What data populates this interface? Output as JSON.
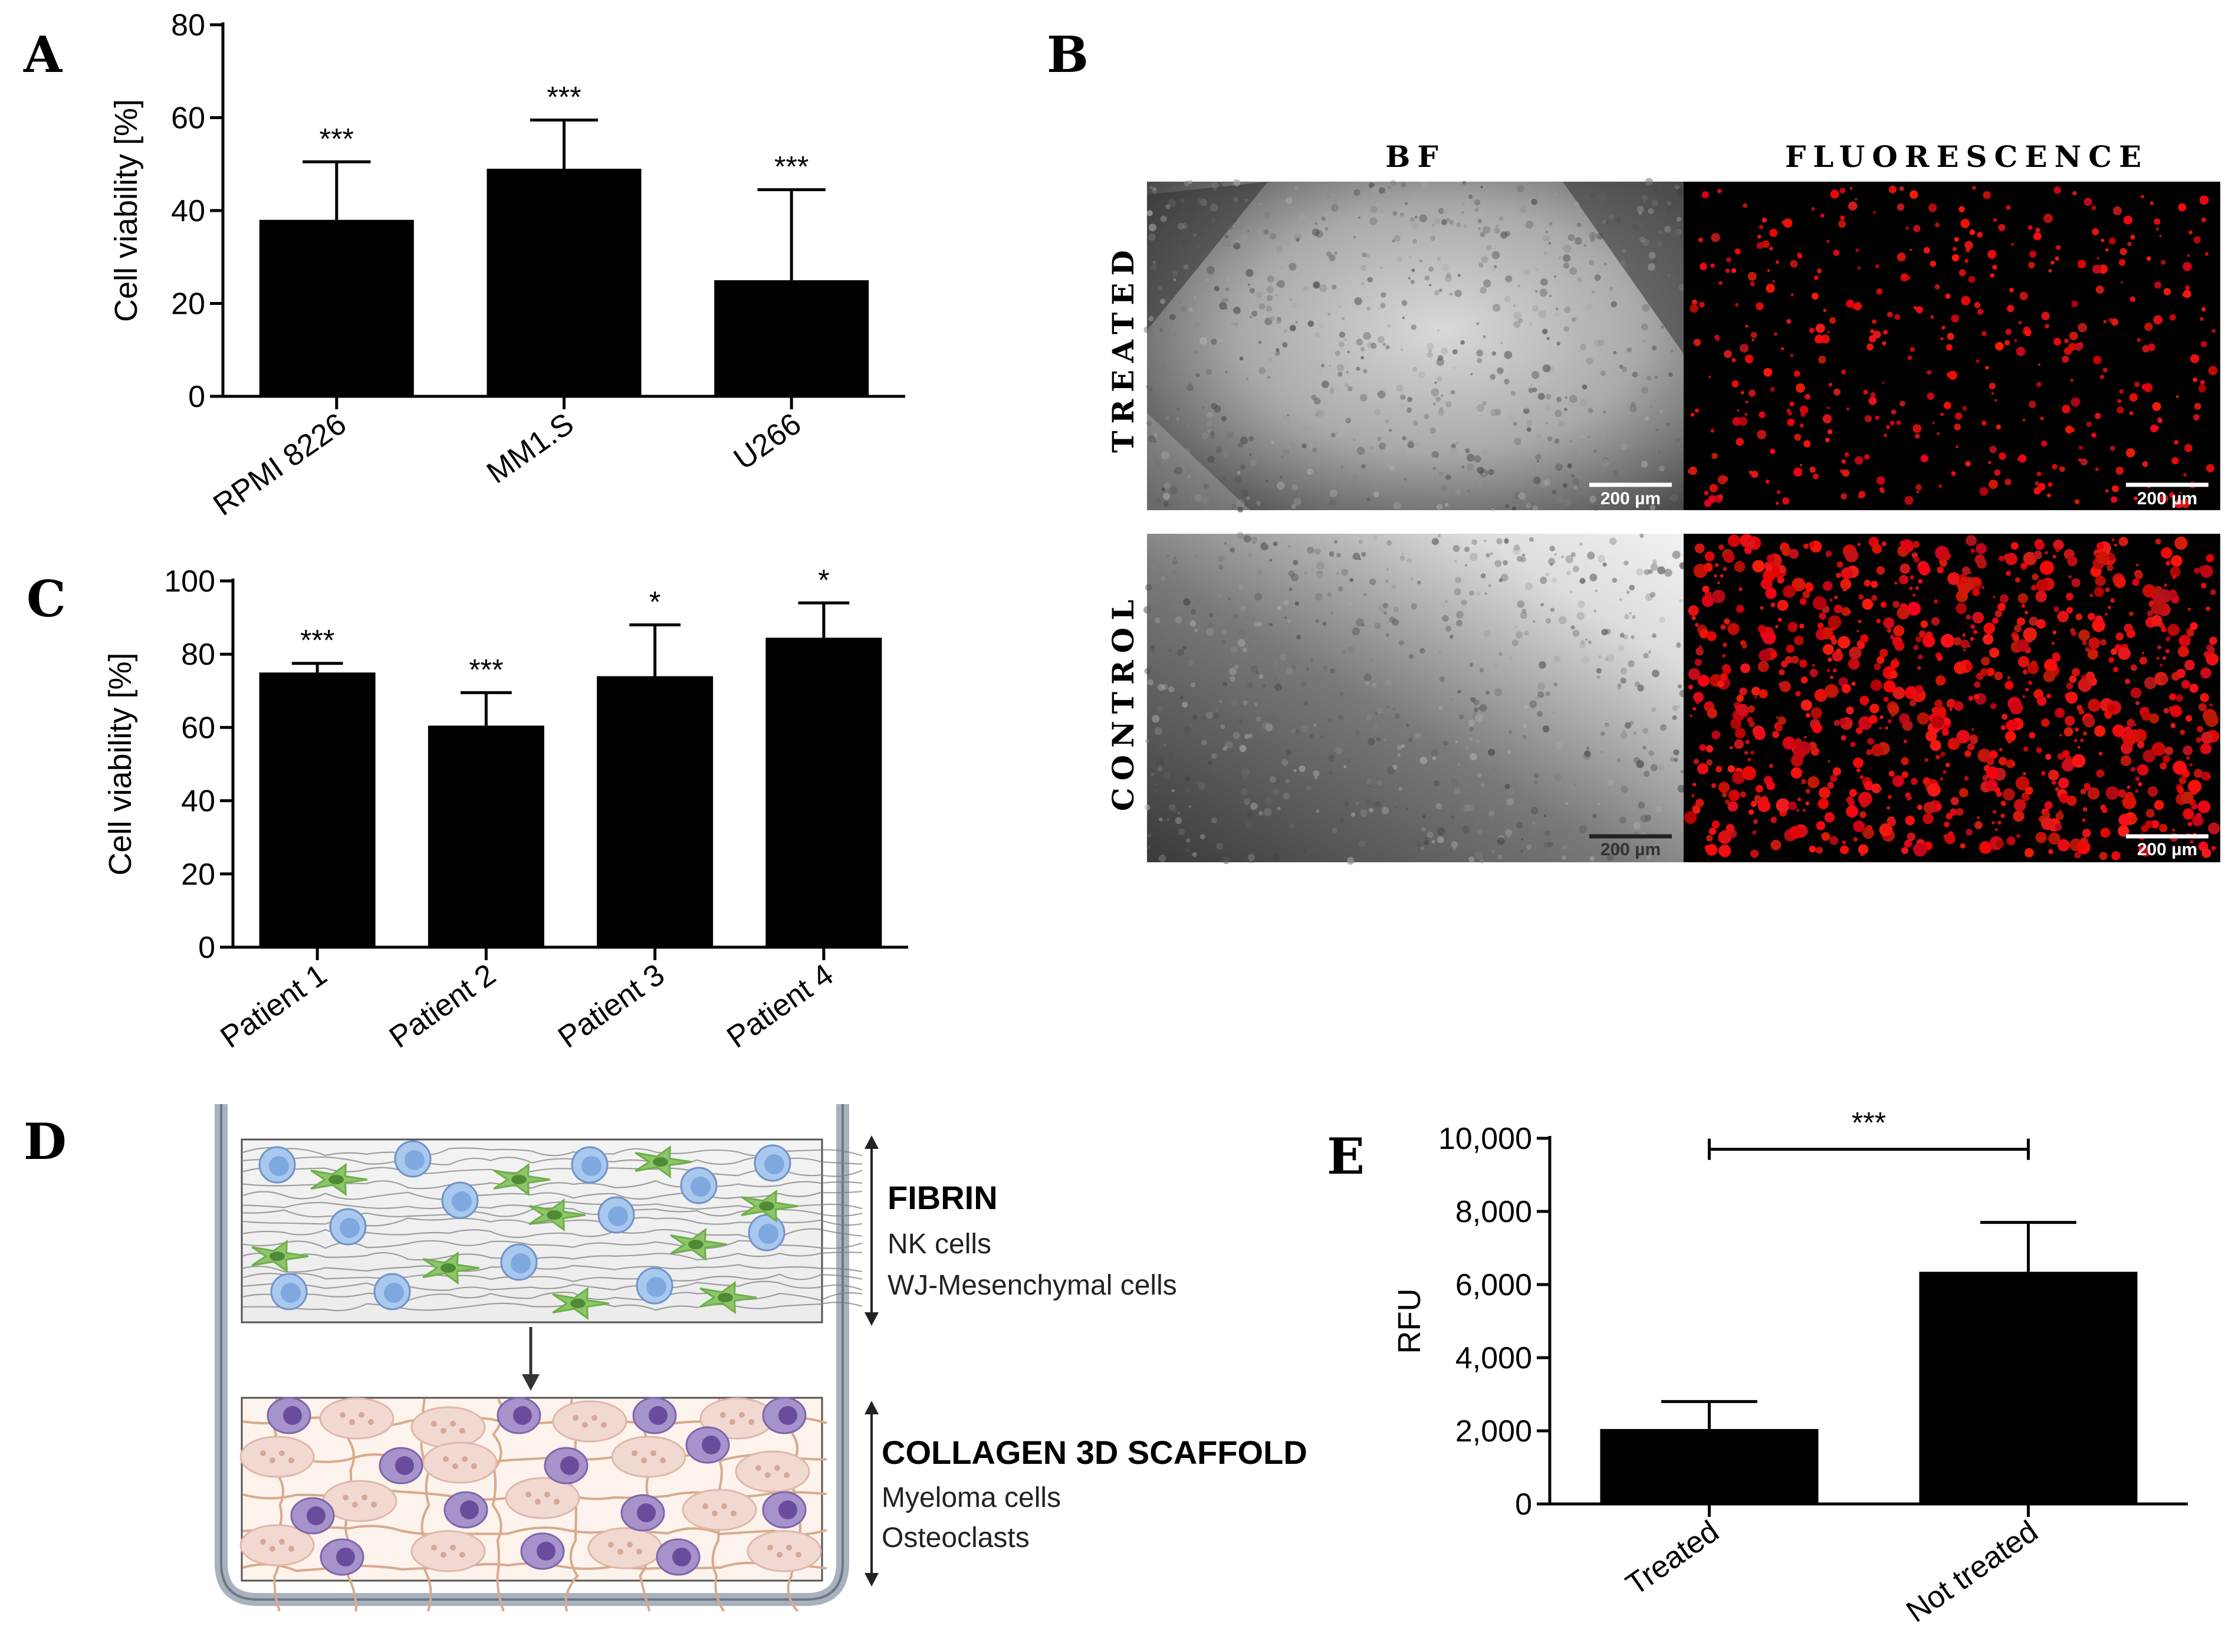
{
  "panels": {
    "A": "A",
    "B": "B",
    "C": "C",
    "D": "D",
    "E": "E"
  },
  "chart_data": [
    {
      "id": "A",
      "type": "bar",
      "ylabel": "Cell viability [%]",
      "ylim": [
        0,
        80
      ],
      "yticks": [
        0,
        20,
        40,
        60,
        80
      ],
      "categories": [
        "RPMI 8226",
        "MM1.S",
        "U266"
      ],
      "values": [
        38,
        49,
        25
      ],
      "errors": [
        12.5,
        10.5,
        19.5
      ],
      "significance": [
        "***",
        "***",
        "***"
      ]
    },
    {
      "id": "C",
      "type": "bar",
      "ylabel": "Cell viability [%]",
      "ylim": [
        0,
        100
      ],
      "yticks": [
        0,
        20,
        40,
        60,
        80,
        100
      ],
      "categories": [
        "Patient 1",
        "Patient 2",
        "Patient 3",
        "Patient 4"
      ],
      "values": [
        75,
        60.5,
        74,
        84.5
      ],
      "errors": [
        2.5,
        9,
        14,
        9.5
      ],
      "significance": [
        "***",
        "***",
        "*",
        "*"
      ]
    },
    {
      "id": "E",
      "type": "bar",
      "ylabel": "RFU",
      "ylim": [
        0,
        10000
      ],
      "yticks": [
        "0",
        "2,000",
        "4,000",
        "6,000",
        "8,000",
        "10,000"
      ],
      "categories": [
        "Treated",
        "Not treated"
      ],
      "values": [
        2050,
        6350
      ],
      "errors": [
        750,
        1350
      ],
      "bracket_label": "***"
    }
  ],
  "micrographs": {
    "column_labels": [
      "BF",
      "FLUORESCENCE"
    ],
    "row_labels": [
      "TREATED",
      "CONTROL"
    ],
    "scale_bar": "200 µm"
  },
  "diagram": {
    "top_title": "FIBRIN",
    "top_items": [
      "NK cells",
      "WJ-Mesenchymal cells"
    ],
    "bottom_title": "COLLAGEN 3D SCAFFOLD",
    "bottom_items": [
      "Myeloma cells",
      "Osteoclasts"
    ]
  },
  "colors": {
    "bar": "#000000",
    "nk_cell": "#7fa8de",
    "msc": "#6fae4a",
    "myeloma": "#6a4c9c",
    "osteoclast": "#f1d9d2",
    "fluor_red": "#ff1a1a"
  }
}
